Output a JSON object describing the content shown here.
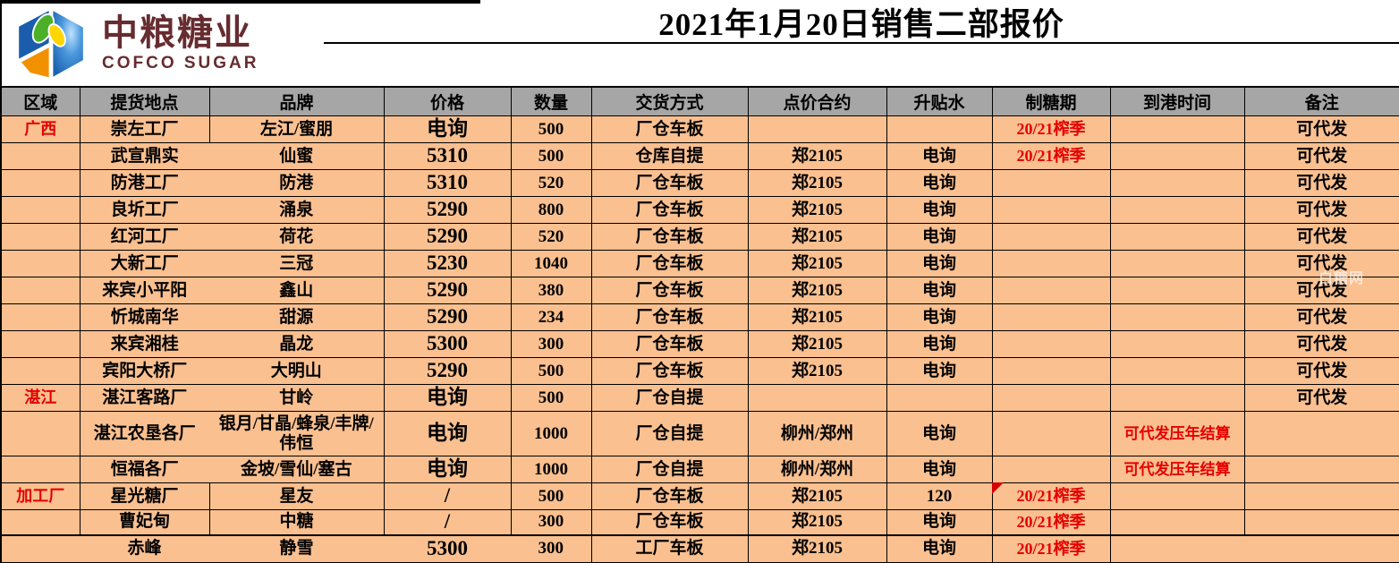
{
  "logo": {
    "cn": "中粮糖业",
    "en": "COFCO SUGAR"
  },
  "page": {
    "title": "2021年1月20日销售二部报价"
  },
  "watermark": "白糖网",
  "colors": {
    "row_bg": "#FAC090",
    "header_bg": "#A6A6A6",
    "red_text": "#E60000",
    "logo_text": "#662C30"
  },
  "table": {
    "headers": [
      "区域",
      "提货地点",
      "品牌",
      "价格",
      "数量",
      "交货方式",
      "点价合约",
      "升贴水",
      "制糖期",
      "到港时间",
      "备注"
    ],
    "rows": [
      {
        "region": "广西",
        "location": "崇左工厂",
        "brand": "左江/蜜朋",
        "price": "电询",
        "qty": "500",
        "delivery": "厂仓车板",
        "contract": "",
        "premium": "",
        "season": "20/21榨季",
        "arrival": "",
        "note": "可代发"
      },
      {
        "region": "",
        "location": "武宣鼎实",
        "brand": "仙蜜",
        "price": "5310",
        "qty": "500",
        "delivery": "仓库自提",
        "contract": "郑2105",
        "premium": "电询",
        "season": "20/21榨季",
        "arrival": "",
        "note": "可代发"
      },
      {
        "region": "",
        "location": "防港工厂",
        "brand": "防港",
        "price": "5310",
        "qty": "520",
        "delivery": "厂仓车板",
        "contract": "郑2105",
        "premium": "电询",
        "season": "",
        "arrival": "",
        "note": "可代发"
      },
      {
        "region": "",
        "location": "良圻工厂",
        "brand": "涌泉",
        "price": "5290",
        "qty": "800",
        "delivery": "厂仓车板",
        "contract": "郑2105",
        "premium": "电询",
        "season": "",
        "arrival": "",
        "note": "可代发"
      },
      {
        "region": "",
        "location": "红河工厂",
        "brand": "荷花",
        "price": "5290",
        "qty": "520",
        "delivery": "厂仓车板",
        "contract": "郑2105",
        "premium": "电询",
        "season": "",
        "arrival": "",
        "note": "可代发"
      },
      {
        "region": "",
        "location": "大新工厂",
        "brand": "三冠",
        "price": "5230",
        "qty": "1040",
        "delivery": "厂仓车板",
        "contract": "郑2105",
        "premium": "电询",
        "season": "",
        "arrival": "",
        "note": "可代发"
      },
      {
        "region": "",
        "location": "来宾小平阳",
        "brand": "鑫山",
        "price": "5290",
        "qty": "380",
        "delivery": "厂仓车板",
        "contract": "郑2105",
        "premium": "电询",
        "season": "",
        "arrival": "",
        "note": "可代发"
      },
      {
        "region": "",
        "location": "忻城南华",
        "brand": "甜源",
        "price": "5290",
        "qty": "234",
        "delivery": "厂仓车板",
        "contract": "郑2105",
        "premium": "电询",
        "season": "",
        "arrival": "",
        "note": "可代发"
      },
      {
        "region": "",
        "location": "来宾湘桂",
        "brand": "晶龙",
        "price": "5300",
        "qty": "300",
        "delivery": "厂仓车板",
        "contract": "郑2105",
        "premium": "电询",
        "season": "",
        "arrival": "",
        "note": "可代发"
      },
      {
        "region": "",
        "location": "宾阳大桥厂",
        "brand": "大明山",
        "price": "5290",
        "qty": "500",
        "delivery": "厂仓车板",
        "contract": "郑2105",
        "premium": "电询",
        "season": "",
        "arrival": "",
        "note": "可代发"
      },
      {
        "region": "湛江",
        "location": "湛江客路厂",
        "brand": "甘岭",
        "price": "电询",
        "qty": "500",
        "delivery": "厂仓自提",
        "contract": "",
        "premium": "",
        "season": "",
        "arrival": "",
        "note": "可代发"
      },
      {
        "region": "",
        "location": "湛江农垦各厂",
        "brand": "银月/甘晶/蜂泉/丰牌/伟恒",
        "price": "电询",
        "qty": "1000",
        "delivery": "厂仓自提",
        "contract": "柳州/郑州",
        "premium": "电询",
        "season": "",
        "arrival": "可代发压年结算",
        "note": ""
      },
      {
        "region": "",
        "location": "恒福各厂",
        "brand": "金坡/雪仙/塞古",
        "price": "电询",
        "qty": "1000",
        "delivery": "厂仓自提",
        "contract": "柳州/郑州",
        "premium": "电询",
        "season": "",
        "arrival": "可代发压年结算",
        "note": ""
      },
      {
        "region": "加工厂",
        "location": "星光糖厂",
        "brand": "星友",
        "price": "/",
        "qty": "500",
        "delivery": "厂仓车板",
        "contract": "郑2105",
        "premium": "120",
        "season": "20/21榨季",
        "arrival": "",
        "note": ""
      },
      {
        "region": "",
        "location": "曹妃甸",
        "brand": "中糖",
        "price": "/",
        "qty": "300",
        "delivery": "厂仓车板",
        "contract": "郑2105",
        "premium": "电询",
        "season": "20/21榨季",
        "arrival": "",
        "note": ""
      },
      {
        "region": "",
        "location": "赤峰",
        "brand": "静雪",
        "price": "5300",
        "qty": "300",
        "delivery": "工厂车板",
        "contract": "郑2105",
        "premium": "电询",
        "season": "20/21榨季",
        "arrival": "",
        "note": ""
      }
    ]
  }
}
